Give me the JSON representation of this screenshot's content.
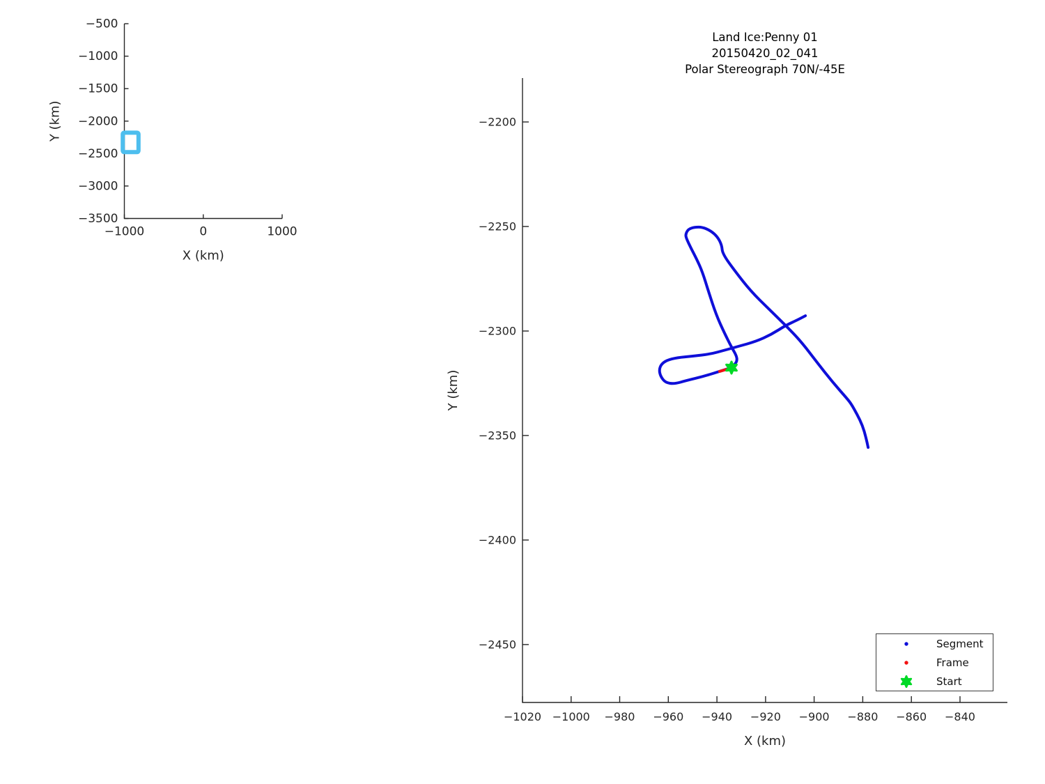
{
  "styles": {
    "axis_color": "#262626",
    "text_color": "#262626",
    "title_color": "#000000",
    "segment_color": "#0f0fd9",
    "frame_color": "#f21111",
    "start_color": "#00d926",
    "extent_box_color": "#4dbeee"
  },
  "chart_data": [
    {
      "id": "overview-map",
      "type": "line",
      "title": "",
      "xlabel": "X (km)",
      "ylabel": "Y (km)",
      "xlim": [
        -1000,
        1000
      ],
      "ylim": [
        -500,
        -3500
      ],
      "xticks": [
        -1000,
        0,
        1000
      ],
      "yticks": [
        -500,
        -1000,
        -1500,
        -2000,
        -2500,
        -3000,
        -3500
      ],
      "grid": false,
      "series": [
        {
          "name": "flight-region-box",
          "kind": "box",
          "color": "#4dbeee",
          "linewidth": 6,
          "x": [
            -1020,
            -820.5
          ],
          "y": [
            -2179,
            -2477.7
          ]
        }
      ]
    },
    {
      "id": "flight-path-map",
      "type": "line",
      "title": [
        "Land Ice:Penny 01",
        "20150420_02_041",
        "Polar Stereograph 70N/-45E"
      ],
      "xlabel": "X (km)",
      "ylabel": "Y (km)",
      "xlim": [
        -1020,
        -820.5
      ],
      "ylim": [
        -2179,
        -2477.7
      ],
      "xticks": [
        -1020,
        -1000,
        -980,
        -960,
        -940,
        -920,
        -900,
        -880,
        -860,
        -840
      ],
      "yticks": [
        -2200,
        -2250,
        -2300,
        -2350,
        -2400,
        -2450
      ],
      "grid": false,
      "legend": {
        "position": "lower right",
        "entries": [
          {
            "label": "Segment",
            "marker": "dot",
            "color": "#0f0fd9"
          },
          {
            "label": "Frame",
            "marker": "dot",
            "color": "#f21111"
          },
          {
            "label": "Start",
            "marker": "star",
            "color": "#00d926"
          }
        ]
      },
      "series": [
        {
          "name": "Segment",
          "kind": "path",
          "color": "#0f0fd9",
          "linewidth": 4,
          "paths": [
            [
              [
                -934.0,
                -2317.5
              ],
              [
                -932.9,
                -2316.3
              ],
              [
                -931.7,
                -2314.3
              ],
              [
                -932.0,
                -2311.7
              ],
              [
                -934.0,
                -2307.7
              ],
              [
                -936.9,
                -2301.0
              ],
              [
                -940.3,
                -2292.3
              ],
              [
                -943.5,
                -2281.0
              ],
              [
                -946.0,
                -2271.7
              ],
              [
                -948.3,
                -2265.7
              ],
              [
                -950.4,
                -2261.0
              ],
              [
                -952.6,
                -2255.7
              ],
              [
                -952.9,
                -2253.7
              ],
              [
                -951.8,
                -2251.3
              ],
              [
                -949.2,
                -2250.3
              ],
              [
                -946.0,
                -2250.3
              ],
              [
                -942.6,
                -2252.0
              ],
              [
                -939.7,
                -2255.0
              ],
              [
                -938.0,
                -2259.0
              ],
              [
                -937.7,
                -2263.0
              ],
              [
                -932.6,
                -2271.3
              ],
              [
                -926.0,
                -2281.0
              ],
              [
                -918.8,
                -2289.3
              ],
              [
                -911.7,
                -2297.3
              ],
              [
                -905.4,
                -2305.0
              ],
              [
                -898.8,
                -2315.0
              ],
              [
                -892.5,
                -2324.3
              ],
              [
                -886.2,
                -2332.7
              ],
              [
                -884.7,
                -2335.0
              ],
              [
                -882.4,
                -2339.7
              ],
              [
                -880.1,
                -2345.3
              ],
              [
                -878.7,
                -2351.0
              ],
              [
                -877.8,
                -2355.7
              ]
            ],
            [
              [
                -934.0,
                -2317.5
              ],
              [
                -938.9,
                -2319.3
              ],
              [
                -945.5,
                -2321.7
              ],
              [
                -952.6,
                -2323.7
              ],
              [
                -957.5,
                -2325.3
              ],
              [
                -961.2,
                -2324.7
              ],
              [
                -963.2,
                -2321.7
              ],
              [
                -963.8,
                -2318.7
              ],
              [
                -963.0,
                -2316.0
              ],
              [
                -960.7,
                -2314.0
              ],
              [
                -956.4,
                -2312.7
              ],
              [
                -949.8,
                -2312.0
              ],
              [
                -942.6,
                -2311.0
              ],
              [
                -936.3,
                -2309.0
              ],
              [
                -931.1,
                -2307.3
              ],
              [
                -924.0,
                -2305.0
              ],
              [
                -917.7,
                -2301.7
              ],
              [
                -911.7,
                -2297.3
              ],
              [
                -907.4,
                -2295.0
              ],
              [
                -903.6,
                -2292.7
              ]
            ]
          ]
        },
        {
          "name": "Frame",
          "kind": "path",
          "color": "#f21111",
          "linewidth": 4,
          "paths": [
            [
              [
                -938.9,
                -2319.3
              ],
              [
                -935.3,
                -2318.1
              ]
            ]
          ]
        },
        {
          "name": "Start",
          "kind": "star",
          "color": "#00d926",
          "x": -934.0,
          "y": -2317.5,
          "size": 17
        }
      ]
    }
  ]
}
